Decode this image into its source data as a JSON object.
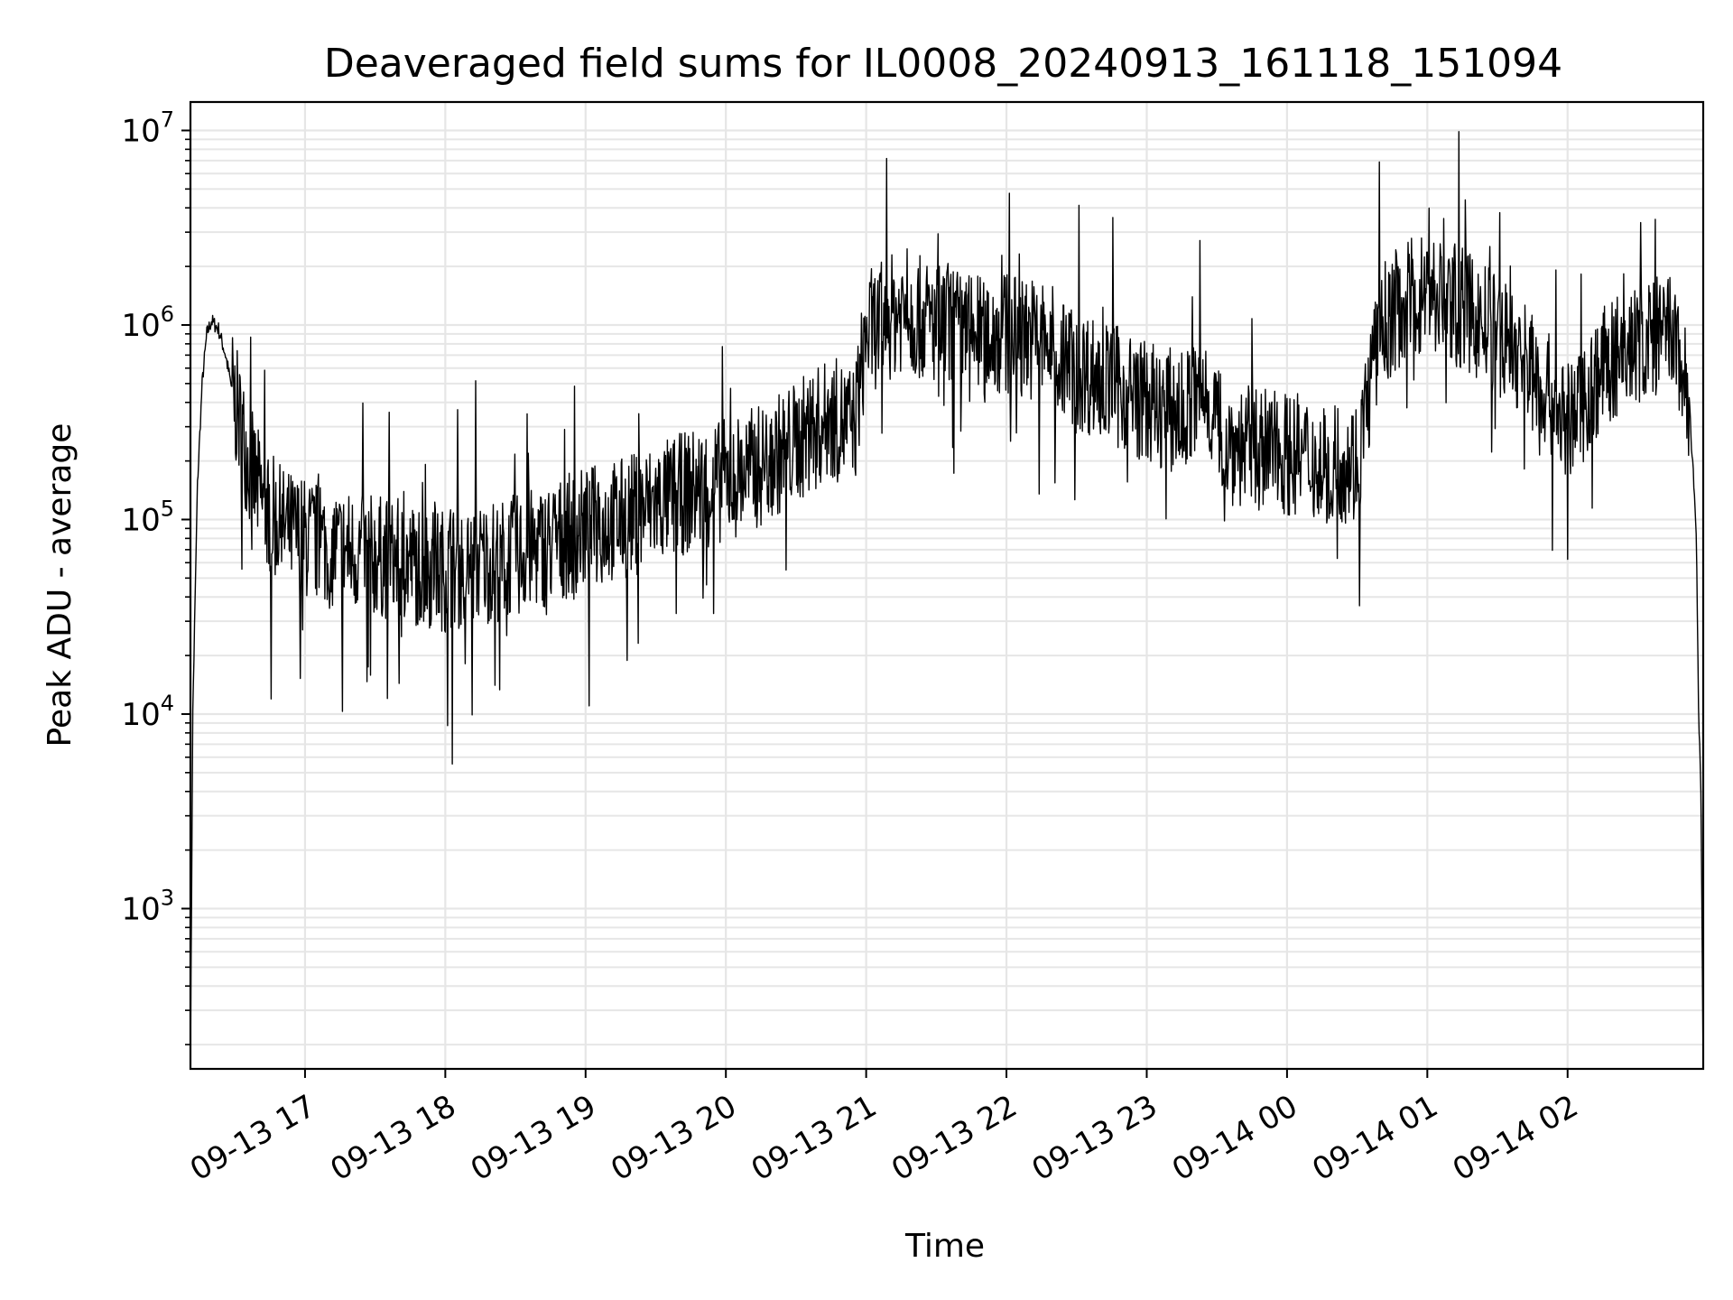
{
  "chart_data": {
    "type": "line",
    "title": "Deaveraged field sums for IL0008_20240913_161118_151094",
    "xlabel": "Time",
    "ylabel": "Peak ADU - average",
    "yscale": "log",
    "grid": true,
    "line_color": "#000000",
    "grid_color": "#e6e6e6",
    "xlim": [
      "2024-09-13 16:11",
      "2024-09-14 02:58"
    ],
    "ylim": [
      150,
      14000000
    ],
    "x_ticks": [
      {
        "time": "2024-09-13 17:00",
        "label": "09-13 17"
      },
      {
        "time": "2024-09-13 18:00",
        "label": "09-13 18"
      },
      {
        "time": "2024-09-13 19:00",
        "label": "09-13 19"
      },
      {
        "time": "2024-09-13 20:00",
        "label": "09-13 20"
      },
      {
        "time": "2024-09-13 21:00",
        "label": "09-13 21"
      },
      {
        "time": "2024-09-13 22:00",
        "label": "09-13 22"
      },
      {
        "time": "2024-09-13 23:00",
        "label": "09-13 23"
      },
      {
        "time": "2024-09-14 00:00",
        "label": "09-14 00"
      },
      {
        "time": "2024-09-14 01:00",
        "label": "09-14 01"
      },
      {
        "time": "2024-09-14 02:00",
        "label": "09-14 02"
      }
    ],
    "y_ticks": [
      {
        "value": 1000,
        "base": "10",
        "exp": "3"
      },
      {
        "value": 10000,
        "base": "10",
        "exp": "4"
      },
      {
        "value": 100000,
        "base": "10",
        "exp": "5"
      },
      {
        "value": 1000000,
        "base": "10",
        "exp": "6"
      },
      {
        "value": 10000000,
        "base": "10",
        "exp": "7"
      }
    ],
    "series": [
      {
        "x": [
          "2024-09-13 16:11",
          "2024-09-13 16:12",
          "2024-09-13 16:14",
          "2024-09-13 16:16",
          "2024-09-13 16:18",
          "2024-09-13 16:20",
          "2024-09-13 16:23",
          "2024-09-13 16:26",
          "2024-09-13 16:29",
          "2024-09-13 16:33",
          "2024-09-13 16:37",
          "2024-09-13 16:42",
          "2024-09-13 16:50",
          "2024-09-13 17:00",
          "2024-09-13 17:15",
          "2024-09-13 17:30",
          "2024-09-13 17:45",
          "2024-09-13 18:00",
          "2024-09-13 18:15",
          "2024-09-13 18:30",
          "2024-09-13 18:45",
          "2024-09-13 19:00",
          "2024-09-13 19:15",
          "2024-09-13 19:30",
          "2024-09-13 19:45",
          "2024-09-13 20:00",
          "2024-09-13 20:15",
          "2024-09-13 20:30",
          "2024-09-13 20:45",
          "2024-09-13 20:55",
          "2024-09-13 21:00",
          "2024-09-13 21:15",
          "2024-09-13 21:30",
          "2024-09-13 21:45",
          "2024-09-13 22:00",
          "2024-09-13 22:15",
          "2024-09-13 22:30",
          "2024-09-13 22:45",
          "2024-09-13 23:00",
          "2024-09-13 23:15",
          "2024-09-13 23:25",
          "2024-09-13 23:35",
          "2024-09-13 23:45",
          "2024-09-14 00:00",
          "2024-09-14 00:15",
          "2024-09-14 00:30",
          "2024-09-14 00:40",
          "2024-09-14 00:50",
          "2024-09-14 01:00",
          "2024-09-14 01:15",
          "2024-09-14 01:30",
          "2024-09-14 01:45",
          "2024-09-14 02:00",
          "2024-09-14 02:15",
          "2024-09-14 02:30",
          "2024-09-14 02:45",
          "2024-09-14 02:52",
          "2024-09-14 02:55",
          "2024-09-14 02:56",
          "2024-09-14 02:57",
          "2024-09-14 02:58"
        ],
        "y": [
          150,
          10000,
          150000,
          500000,
          900000,
          1050000,
          950000,
          700000,
          450000,
          280000,
          180000,
          120000,
          90000,
          80000,
          70000,
          65000,
          60000,
          55000,
          60000,
          65000,
          75000,
          90000,
          100000,
          120000,
          140000,
          160000,
          190000,
          250000,
          330000,
          300000,
          900000,
          1200000,
          1000000,
          900000,
          900000,
          850000,
          600000,
          500000,
          400000,
          350000,
          450000,
          250000,
          230000,
          220000,
          200000,
          200000,
          1000000,
          1300000,
          1500000,
          1200000,
          900000,
          600000,
          300000,
          600000,
          800000,
          900000,
          400000,
          90000,
          11000,
          4000,
          150
        ]
      }
    ]
  }
}
